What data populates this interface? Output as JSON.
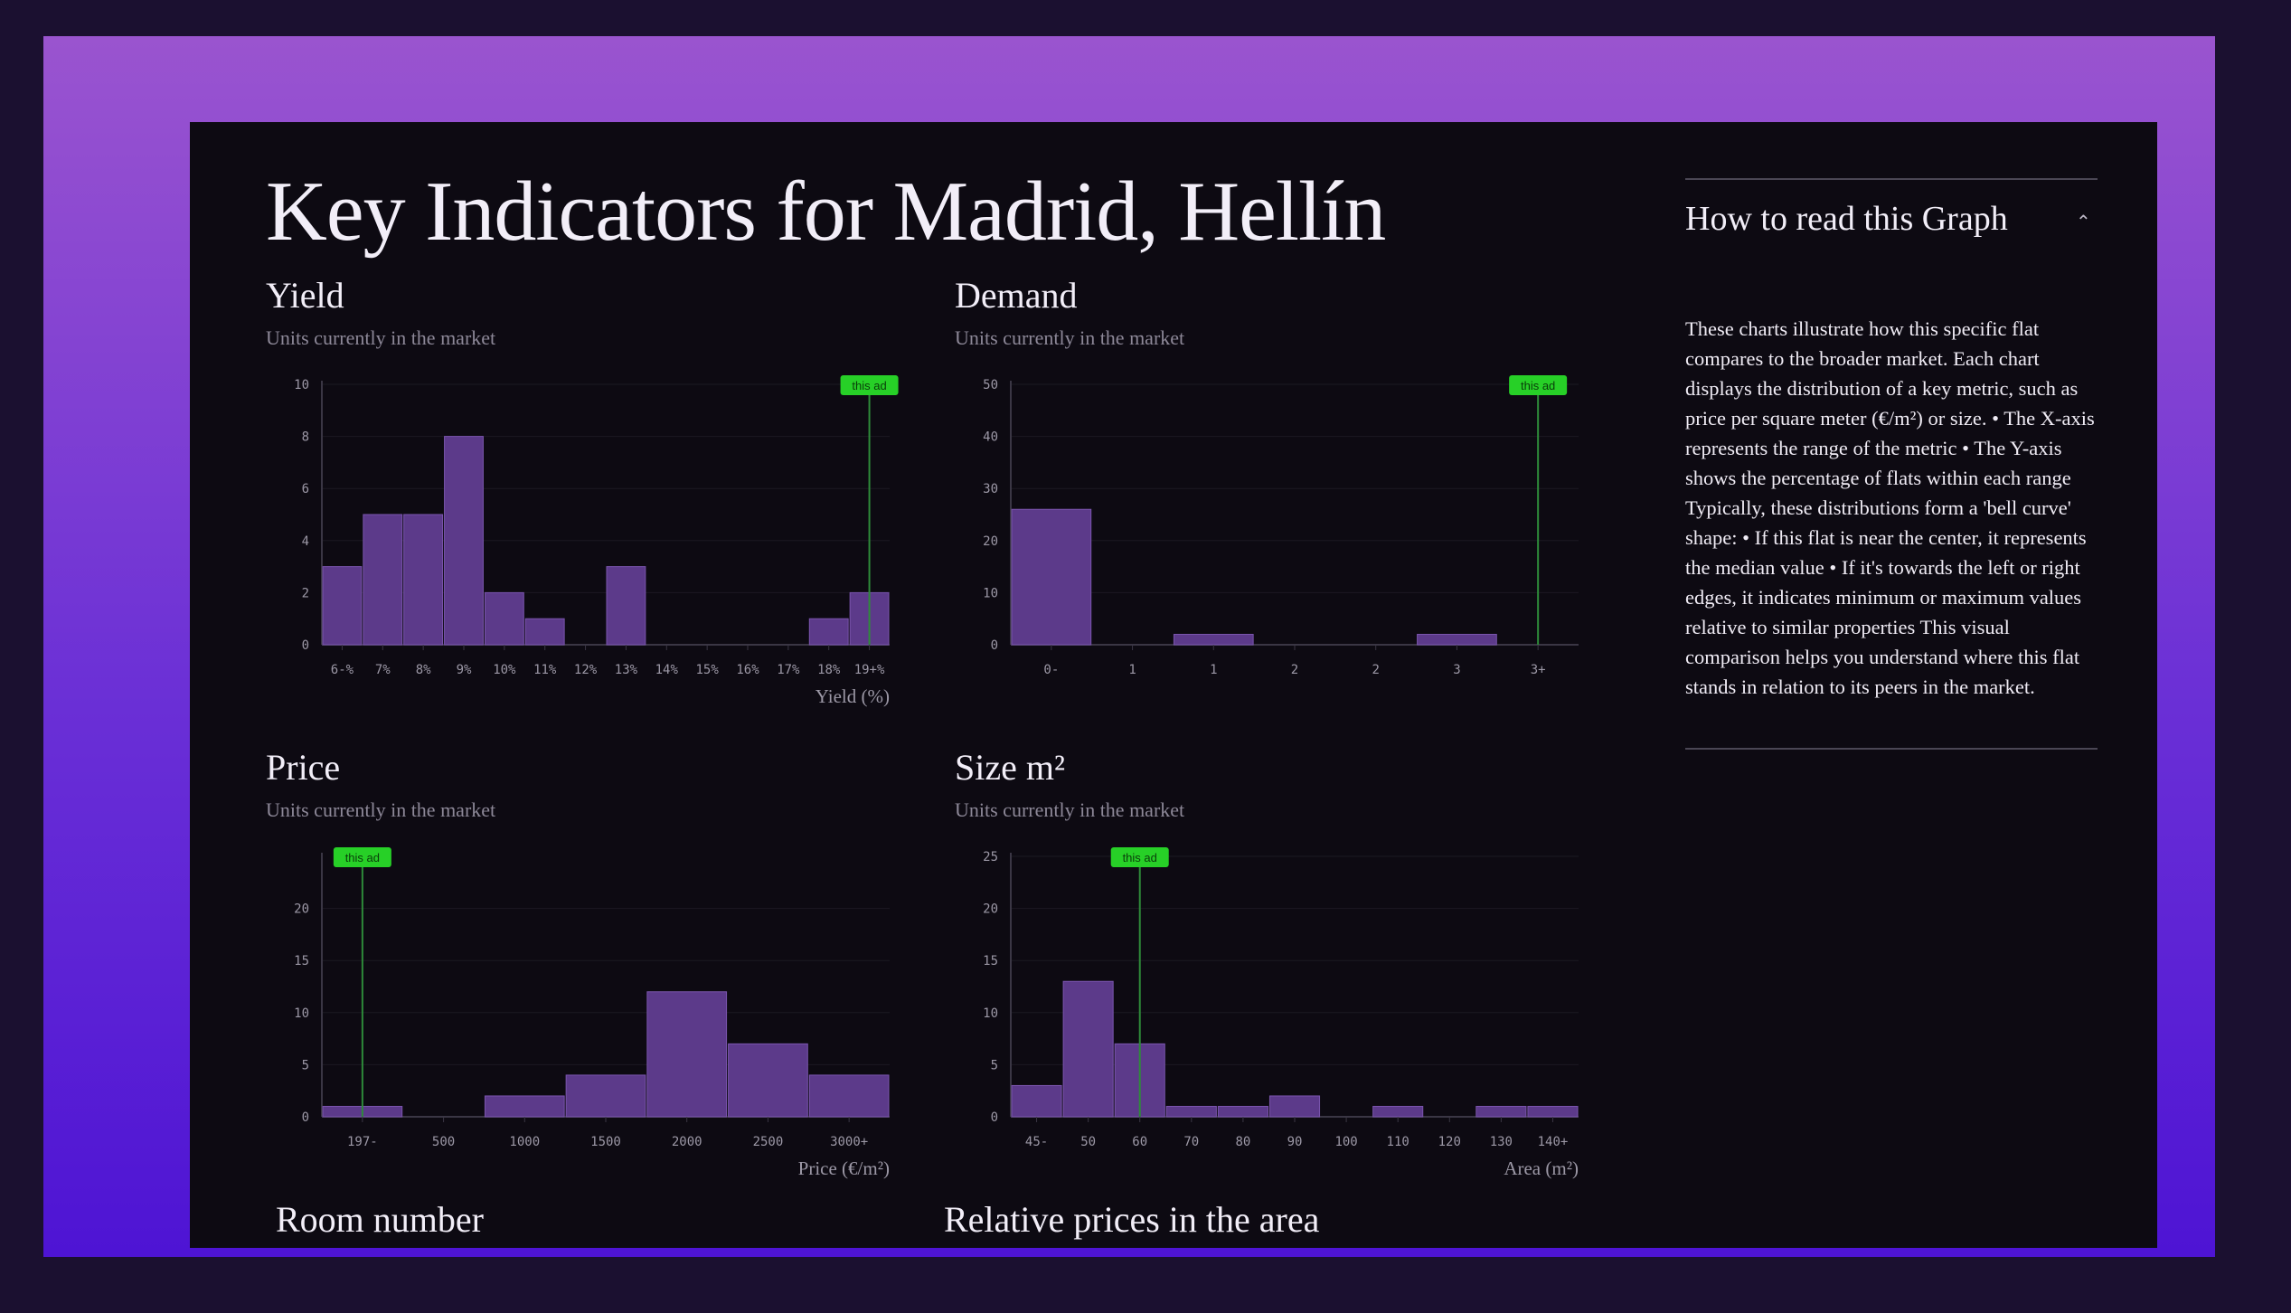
{
  "page": {
    "title": "Key Indicators for Madrid, Hellín"
  },
  "colors": {
    "bar": "#5c3a8a",
    "bar_stroke": "#7a55ad",
    "marker_line": "#2e8b3a",
    "badge_fill": "#27d027",
    "axis": "#3a3644",
    "grid": "#1c1922"
  },
  "marker_label": "this ad",
  "charts": {
    "yield": {
      "title": "Yield",
      "subtitle": "Units currently in the market",
      "chart_data": {
        "type": "bar",
        "categories": [
          "6-%",
          "7%",
          "8%",
          "9%",
          "10%",
          "11%",
          "12%",
          "13%",
          "14%",
          "15%",
          "16%",
          "17%",
          "18%",
          "19+%"
        ],
        "values": [
          3,
          5,
          5,
          8,
          2,
          1,
          0,
          3,
          0,
          0,
          0,
          0,
          1,
          2
        ],
        "yticks": [
          0,
          2,
          4,
          6,
          8,
          10
        ],
        "ylim": [
          0,
          10
        ],
        "xlabel": "Yield (%)",
        "marker_index": 13
      }
    },
    "demand": {
      "title": "Demand",
      "subtitle": "Units currently in the market",
      "chart_data": {
        "type": "bar",
        "categories": [
          "0-",
          "1",
          "1",
          "2",
          "2",
          "3",
          "3+"
        ],
        "values": [
          26,
          0,
          2,
          0,
          0,
          2,
          0
        ],
        "yticks": [
          0,
          10,
          20,
          30,
          40,
          50
        ],
        "ylim": [
          0,
          50
        ],
        "xlabel": "",
        "marker_index": 6
      }
    },
    "price": {
      "title": "Price",
      "subtitle": "Units currently in the market",
      "chart_data": {
        "type": "bar",
        "categories": [
          "197-",
          "500",
          "1000",
          "1500",
          "2000",
          "2500",
          "3000+"
        ],
        "values": [
          1,
          0,
          2,
          4,
          12,
          7,
          4
        ],
        "yticks": [
          0,
          5,
          10,
          15,
          20
        ],
        "ylim": [
          0,
          25
        ],
        "xlabel": "Price (€/m²)",
        "marker_index": 0
      }
    },
    "size": {
      "title": "Size m²",
      "subtitle": "Units currently in the market",
      "chart_data": {
        "type": "bar",
        "categories": [
          "45-",
          "50",
          "60",
          "70",
          "80",
          "90",
          "100",
          "110",
          "120",
          "130",
          "140+"
        ],
        "values": [
          3,
          13,
          7,
          1,
          1,
          2,
          0,
          1,
          0,
          1,
          1
        ],
        "yticks": [
          0,
          5,
          10,
          15,
          20,
          25
        ],
        "ylim": [
          0,
          25
        ],
        "xlabel": "Area (m²)",
        "marker_index": 2
      }
    }
  },
  "sections": {
    "room_number": "Room number",
    "relative_prices": "Relative prices in the area"
  },
  "info": {
    "title": "How to read this Graph",
    "toggle_icon": "chevron-up-icon",
    "toggle_glyph": "⌃",
    "body": "These charts illustrate how this specific flat compares to the broader market. Each chart displays the distribution of a key metric, such as price per square meter (€/m²) or size. • The X-axis represents the range of the metric • The Y-axis shows the percentage of flats within each range Typically, these distributions form a 'bell curve' shape: • If this flat is near the center, it represents the median value • If it's towards the left or right edges, it indicates minimum or maximum values relative to similar properties This visual comparison helps you understand where this flat stands in relation to its peers in the market."
  }
}
